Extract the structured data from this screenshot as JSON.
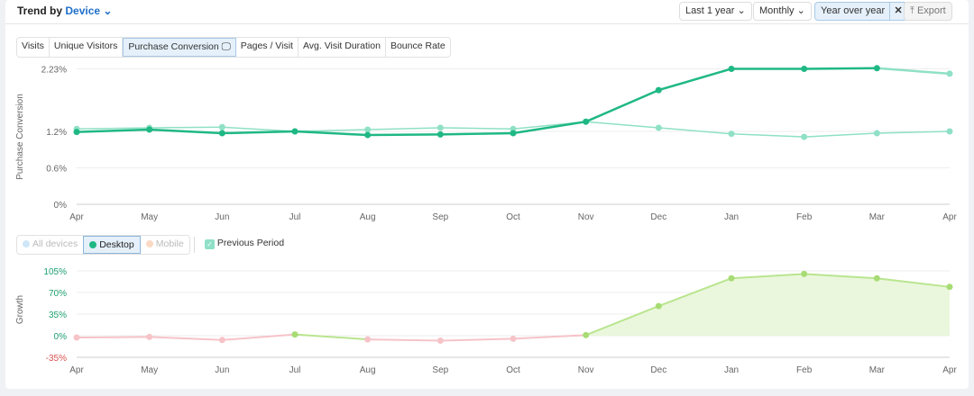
{
  "header": {
    "title_prefix": "Trend by",
    "title_dimension": "Device",
    "period": "Last 1 year",
    "granularity": "Monthly",
    "compare": "Year over year",
    "export": "Export"
  },
  "tabs": [
    "Visits",
    "Unique Visitors",
    "Purchase Conversion",
    "Pages / Visit",
    "Avg. Visit Duration",
    "Bounce Rate"
  ],
  "legend": {
    "devices": [
      "All devices",
      "Desktop",
      "Mobile"
    ],
    "previous_period": "Previous Period"
  },
  "colors": {
    "current": "#1fb884",
    "previous": "#8fe0c6",
    "growth_pos": "#b9e58f",
    "growth_neg": "#f6c3c8"
  },
  "chart_data": [
    {
      "type": "line",
      "title": "Purchase Conversion",
      "ylabel": "Purchase Conversion",
      "ylim": [
        0,
        2.23
      ],
      "yticks": [
        "0%",
        "0.6%",
        "1.2%",
        "2.23%"
      ],
      "ytick_values": [
        0,
        0.6,
        1.2,
        2.23
      ],
      "categories": [
        "Apr",
        "May",
        "Jun",
        "Jul",
        "Aug",
        "Sep",
        "Oct",
        "Nov",
        "Dec",
        "Jan",
        "Feb",
        "Mar",
        "Apr"
      ],
      "series": [
        {
          "name": "Desktop",
          "values": [
            1.19,
            1.23,
            1.17,
            1.2,
            1.14,
            1.15,
            1.17,
            1.36,
            1.88,
            2.23,
            2.23,
            2.24,
            2.15
          ]
        },
        {
          "name": "Previous Period",
          "values": [
            1.24,
            1.26,
            1.27,
            1.2,
            1.23,
            1.26,
            1.24,
            1.36,
            1.26,
            1.16,
            1.11,
            1.17,
            1.2
          ]
        }
      ]
    },
    {
      "type": "area",
      "ylabel": "Growth",
      "ylim": [
        -35,
        105
      ],
      "yticks": [
        "-35%",
        "0%",
        "35%",
        "70%",
        "105%"
      ],
      "ytick_values": [
        -35,
        0,
        35,
        70,
        105
      ],
      "categories": [
        "Apr",
        "May",
        "Jun",
        "Jul",
        "Aug",
        "Sep",
        "Oct",
        "Nov",
        "Dec",
        "Jan",
        "Feb",
        "Mar",
        "Apr"
      ],
      "series": [
        {
          "name": "Growth",
          "values": [
            -3,
            -2,
            -7,
            2,
            -6,
            -8,
            -5,
            1,
            48,
            93,
            100,
            93,
            79
          ]
        }
      ]
    }
  ]
}
